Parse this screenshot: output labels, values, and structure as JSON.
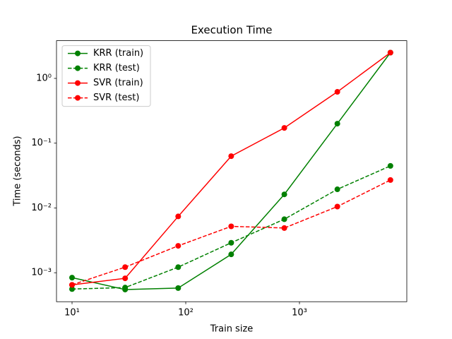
{
  "chart_data": {
    "type": "line",
    "title": "Execution Time",
    "x_label": "Train size",
    "y_label": "Time (seconds)",
    "x": [
      10,
      29.3,
      85.8,
      251,
      736,
      2154,
      6310
    ],
    "xscale": "log",
    "yscale": "log",
    "xlim": [
      7.3,
      8790
    ],
    "ylim": [
      0.000357,
      3.82
    ],
    "xticks": [
      {
        "value": 10,
        "label": "10¹"
      },
      {
        "value": 100,
        "label": "10²"
      },
      {
        "value": 1000,
        "label": "10³"
      }
    ],
    "yticks": [
      {
        "value": 0.001,
        "label": "10⁻³"
      },
      {
        "value": 0.01,
        "label": "10⁻²"
      },
      {
        "value": 0.1,
        "label": "10⁻¹"
      },
      {
        "value": 1,
        "label": "10⁰"
      }
    ],
    "legend": "upper left",
    "series": [
      {
        "name": "KRR (train)",
        "color": "#008000",
        "linestyle": "solid",
        "values": [
          0.00084,
          0.00055,
          0.00058,
          0.00192,
          0.0162,
          0.2,
          2.5
        ]
      },
      {
        "name": "KRR (test)",
        "color": "#008000",
        "linestyle": "dashed",
        "values": [
          0.00056,
          0.00059,
          0.00122,
          0.0029,
          0.0067,
          0.0194,
          0.0446
        ]
      },
      {
        "name": "SVR (train)",
        "color": "#ff0000",
        "linestyle": "solid",
        "values": [
          0.00065,
          0.00082,
          0.0074,
          0.063,
          0.172,
          0.62,
          2.5
        ]
      },
      {
        "name": "SVR (test)",
        "color": "#ff0000",
        "linestyle": "dashed",
        "values": [
          0.00065,
          0.00122,
          0.0026,
          0.0052,
          0.0049,
          0.0105,
          0.027
        ]
      }
    ]
  }
}
